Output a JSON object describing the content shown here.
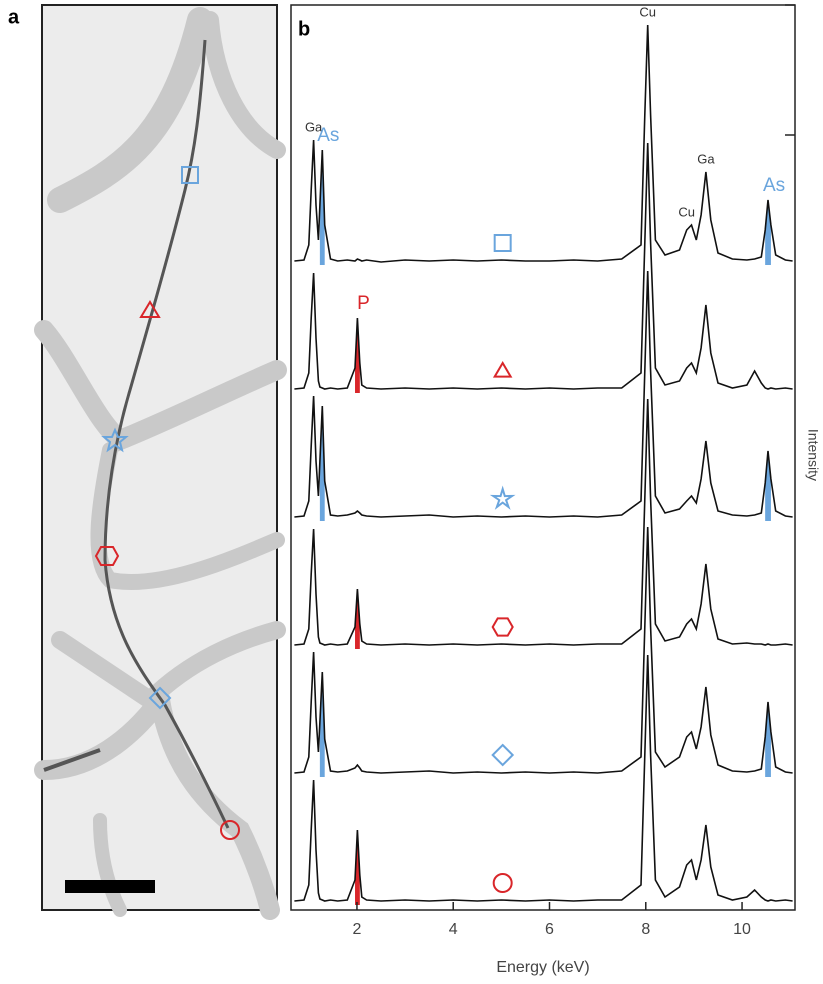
{
  "panel_labels": [
    "a",
    "b"
  ],
  "chart_data": {
    "type": "stacked-spectra",
    "xlabel": "Energy (keV)",
    "ylabel": "Intensity",
    "xlim": [
      0.63,
      11.1
    ],
    "xticks": [
      2,
      4,
      6,
      8,
      10
    ],
    "line_color": "#111111",
    "x": [
      0.7,
      0.9,
      1.0,
      1.05,
      1.1,
      1.15,
      1.2,
      1.23,
      1.28,
      1.33,
      1.45,
      1.6,
      1.8,
      1.96,
      2.01,
      2.06,
      2.1,
      2.2,
      2.5,
      3,
      3.5,
      4,
      4.5,
      5,
      5.5,
      6,
      6.5,
      7,
      7.5,
      7.9,
      7.98,
      8.04,
      8.1,
      8.2,
      8.4,
      8.7,
      8.85,
      8.95,
      9.05,
      9.15,
      9.25,
      9.35,
      9.5,
      9.8,
      10.1,
      10.26,
      10.4,
      10.48,
      10.54,
      10.6,
      10.7,
      10.9,
      11.05
    ],
    "series": [
      {
        "marker": "square",
        "color": "#6aa5dd",
        "fill_peaks": [
          1.28,
          10.54
        ],
        "values": [
          4,
          5,
          20,
          75,
          125,
          60,
          25,
          60,
          115,
          40,
          6,
          4,
          5,
          4,
          6,
          5,
          4,
          5,
          3,
          5,
          4,
          5,
          4,
          5,
          4,
          4,
          5,
          4,
          6,
          20,
          150,
          240,
          150,
          25,
          10,
          15,
          35,
          40,
          25,
          50,
          93,
          45,
          12,
          6,
          5,
          6,
          8,
          35,
          65,
          40,
          10,
          5,
          4
        ]
      },
      {
        "marker": "triangle",
        "color": "#d9262a",
        "fill_peaks": [
          2.01
        ],
        "values": [
          4,
          5,
          20,
          75,
          120,
          55,
          12,
          6,
          5,
          4,
          5,
          4,
          5,
          25,
          75,
          30,
          8,
          5,
          4,
          5,
          4,
          5,
          4,
          5,
          4,
          5,
          4,
          5,
          5,
          20,
          150,
          250,
          150,
          25,
          8,
          12,
          25,
          30,
          20,
          45,
          88,
          40,
          10,
          5,
          8,
          22,
          10,
          5,
          4,
          5,
          4,
          5,
          4
        ]
      },
      {
        "marker": "star",
        "color": "#6aa5dd",
        "fill_peaks": [
          1.28,
          10.54
        ],
        "values": [
          4,
          5,
          20,
          75,
          125,
          60,
          25,
          60,
          115,
          40,
          6,
          5,
          6,
          8,
          10,
          8,
          6,
          5,
          4,
          5,
          6,
          4,
          5,
          4,
          5,
          4,
          5,
          4,
          6,
          20,
          150,
          250,
          150,
          25,
          8,
          12,
          20,
          25,
          18,
          42,
          80,
          38,
          10,
          6,
          5,
          6,
          8,
          38,
          70,
          42,
          10,
          5,
          4
        ]
      },
      {
        "marker": "hexagon",
        "color": "#d9262a",
        "fill_peaks": [
          2.01
        ],
        "values": [
          4,
          5,
          20,
          75,
          120,
          55,
          12,
          6,
          5,
          4,
          5,
          4,
          5,
          22,
          60,
          25,
          8,
          5,
          4,
          5,
          4,
          5,
          4,
          5,
          4,
          5,
          4,
          5,
          5,
          20,
          150,
          250,
          150,
          25,
          8,
          12,
          25,
          30,
          20,
          45,
          85,
          40,
          10,
          5,
          6,
          5,
          5,
          4,
          5,
          4,
          4,
          5,
          4
        ]
      },
      {
        "marker": "diamond",
        "color": "#6aa5dd",
        "fill_peaks": [
          1.28,
          10.54
        ],
        "values": [
          4,
          5,
          20,
          75,
          125,
          60,
          25,
          55,
          105,
          38,
          6,
          5,
          6,
          9,
          12,
          9,
          6,
          5,
          4,
          5,
          6,
          4,
          5,
          4,
          5,
          4,
          5,
          4,
          6,
          20,
          150,
          250,
          150,
          25,
          10,
          20,
          40,
          45,
          28,
          50,
          90,
          42,
          12,
          6,
          5,
          6,
          8,
          40,
          75,
          45,
          10,
          5,
          4
        ]
      },
      {
        "marker": "circle",
        "color": "#d9262a",
        "fill_peaks": [
          2.01
        ],
        "values": [
          4,
          5,
          20,
          75,
          125,
          55,
          12,
          6,
          5,
          4,
          5,
          4,
          5,
          25,
          75,
          30,
          8,
          5,
          4,
          5,
          4,
          5,
          4,
          5,
          4,
          5,
          4,
          5,
          5,
          20,
          150,
          250,
          150,
          25,
          8,
          18,
          40,
          45,
          25,
          45,
          80,
          38,
          10,
          5,
          8,
          15,
          8,
          5,
          4,
          5,
          4,
          5,
          4
        ]
      }
    ],
    "annotations": [
      {
        "text": "Ga",
        "x": 1.1,
        "series": 0,
        "color": "#333333"
      },
      {
        "text": "As",
        "x": 1.28,
        "series": 0,
        "color": "#6aa5dd"
      },
      {
        "text": "P",
        "x": 2.01,
        "series": 1,
        "color": "#d9262a"
      },
      {
        "text": "Cu",
        "x": 8.04,
        "series": 0,
        "color": "#333333"
      },
      {
        "text": "Cu",
        "x": 8.85,
        "series": 0,
        "color": "#333333"
      },
      {
        "text": "Ga",
        "x": 9.25,
        "series": 0,
        "color": "#333333"
      },
      {
        "text": "As",
        "x": 10.54,
        "series": 0,
        "color": "#6aa5dd"
      }
    ]
  }
}
